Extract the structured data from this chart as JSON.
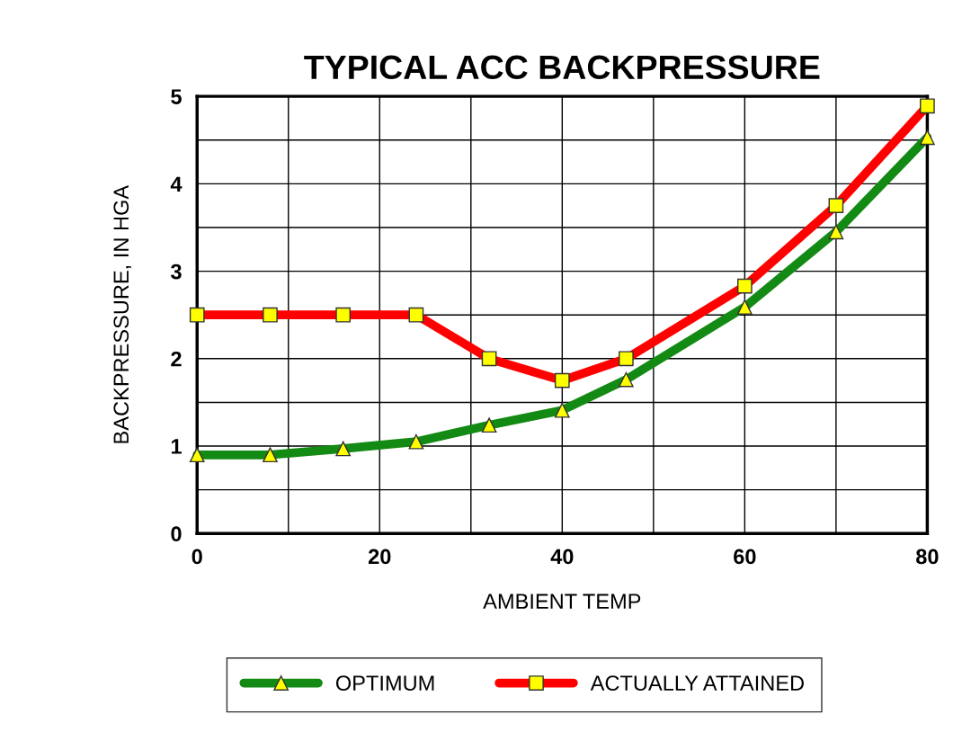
{
  "chart_data": {
    "type": "line",
    "title": "TYPICAL ACC BACKPRESSURE",
    "xlabel": "AMBIENT TEMP",
    "ylabel": "BACKPRESSURE, IN HGA",
    "x": [
      0,
      8,
      16,
      24,
      32,
      40,
      47,
      60,
      70,
      80
    ],
    "series": [
      {
        "name": "OPTIMUM",
        "color": "#138a13",
        "marker": "triangle",
        "values": [
          0.9,
          0.9,
          0.97,
          1.05,
          1.24,
          1.41,
          1.76,
          2.59,
          3.45,
          4.53
        ]
      },
      {
        "name": "ACTUALLY ATTAINED",
        "color": "#ff0000",
        "marker": "square",
        "values": [
          2.5,
          2.5,
          2.5,
          2.5,
          2.0,
          1.75,
          2.0,
          2.83,
          3.75,
          4.89
        ]
      }
    ],
    "xlim": [
      0,
      80
    ],
    "ylim": [
      0,
      5
    ],
    "xticks": [
      0,
      {
        "value": 10,
        "label": null
      },
      20,
      {
        "value": 30,
        "label": null
      },
      40,
      {
        "value": 50,
        "label": null
      },
      60,
      {
        "value": 70,
        "label": null
      },
      80
    ],
    "yticks": [
      0,
      {
        "value": 0.5,
        "label": null
      },
      1,
      {
        "value": 1.5,
        "label": null
      },
      2,
      {
        "value": 2.5,
        "label": null
      },
      3,
      {
        "value": 3.5,
        "label": null
      },
      4,
      {
        "value": 4.5,
        "label": null
      },
      5
    ],
    "grid": true,
    "legend": "bottom"
  }
}
